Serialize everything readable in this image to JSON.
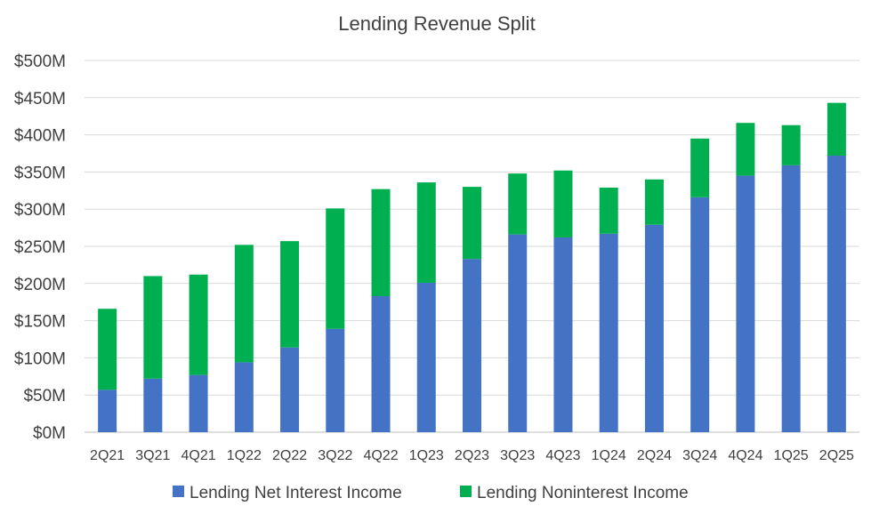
{
  "chart_data": {
    "type": "bar",
    "stacked": true,
    "title": "Lending Revenue Split",
    "xlabel": "",
    "ylabel": "",
    "ylim": [
      0,
      500
    ],
    "y_ticks": [
      0,
      50,
      100,
      150,
      200,
      250,
      300,
      350,
      400,
      450,
      500
    ],
    "y_tick_labels": [
      "$0M",
      "$50M",
      "$100M",
      "$150M",
      "$200M",
      "$250M",
      "$300M",
      "$350M",
      "$400M",
      "$450M",
      "$500M"
    ],
    "grid": true,
    "legend_position": "bottom",
    "categories": [
      "2Q21",
      "3Q21",
      "4Q21",
      "1Q22",
      "2Q22",
      "3Q22",
      "4Q22",
      "1Q23",
      "2Q23",
      "3Q23",
      "4Q23",
      "1Q24",
      "2Q24",
      "3Q24",
      "4Q24",
      "1Q25",
      "2Q25"
    ],
    "series": [
      {
        "name": "Lending Net Interest Income",
        "color": "#4472c4",
        "values": [
          57,
          72,
          77,
          94,
          114,
          139,
          183,
          201,
          233,
          266,
          262,
          267,
          279,
          316,
          345,
          359,
          372
        ]
      },
      {
        "name": "Lending Noninterest Income",
        "color": "#00b050",
        "values": [
          109,
          138,
          135,
          158,
          143,
          162,
          144,
          135,
          97,
          82,
          90,
          62,
          61,
          79,
          71,
          54,
          71
        ]
      }
    ]
  }
}
